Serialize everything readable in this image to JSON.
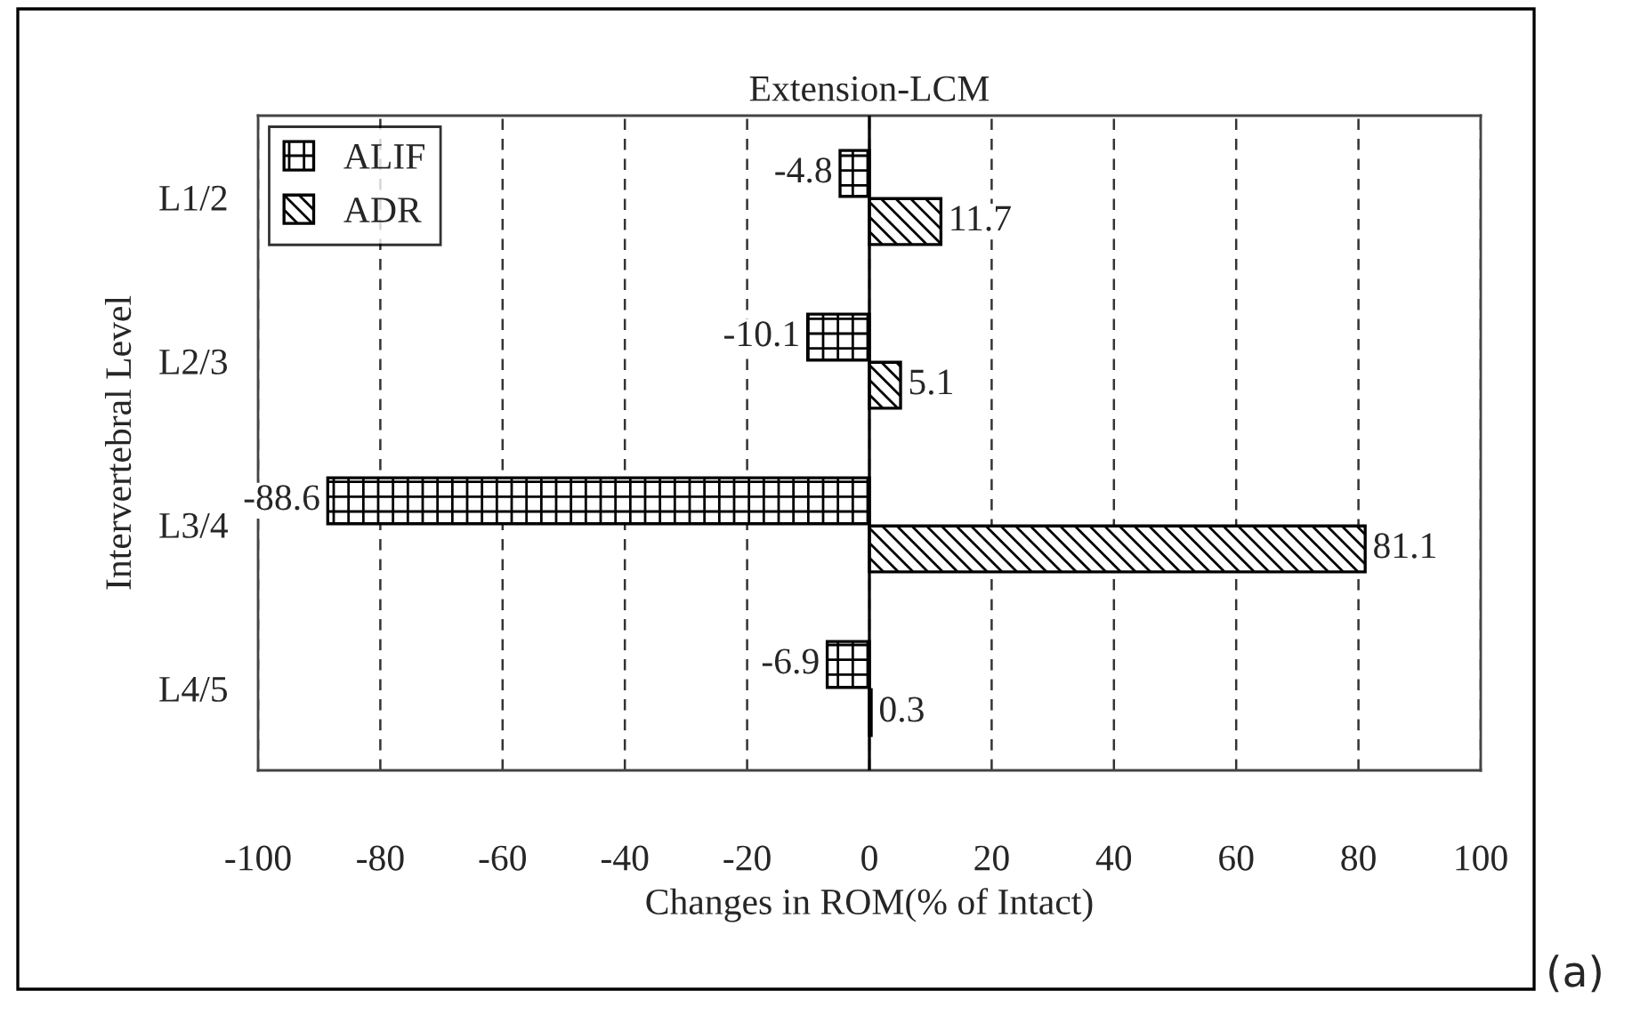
{
  "chart_data": {
    "type": "bar",
    "orientation": "horizontal",
    "title": "Extension-LCM",
    "xlabel": "Changes in ROM(% of Intact)",
    "ylabel": "Intervertebral Level",
    "categories": [
      "L1/2",
      "L2/3",
      "L3/4",
      "L4/5"
    ],
    "series": [
      {
        "name": "ALIF",
        "color": "#000000",
        "values": [
          -4.8,
          -10.1,
          -88.6,
          -6.9
        ]
      },
      {
        "name": "ADR",
        "color": "#000000",
        "values": [
          11.7,
          5.1,
          81.1,
          0.3
        ]
      }
    ],
    "data_labels": true,
    "xlim": [
      -100,
      100
    ],
    "xticks": [
      -100,
      -80,
      -60,
      -40,
      -20,
      0,
      20,
      40,
      60,
      80,
      100
    ],
    "grid": "x",
    "legend": "top left",
    "annotations": [
      "(a)"
    ]
  }
}
